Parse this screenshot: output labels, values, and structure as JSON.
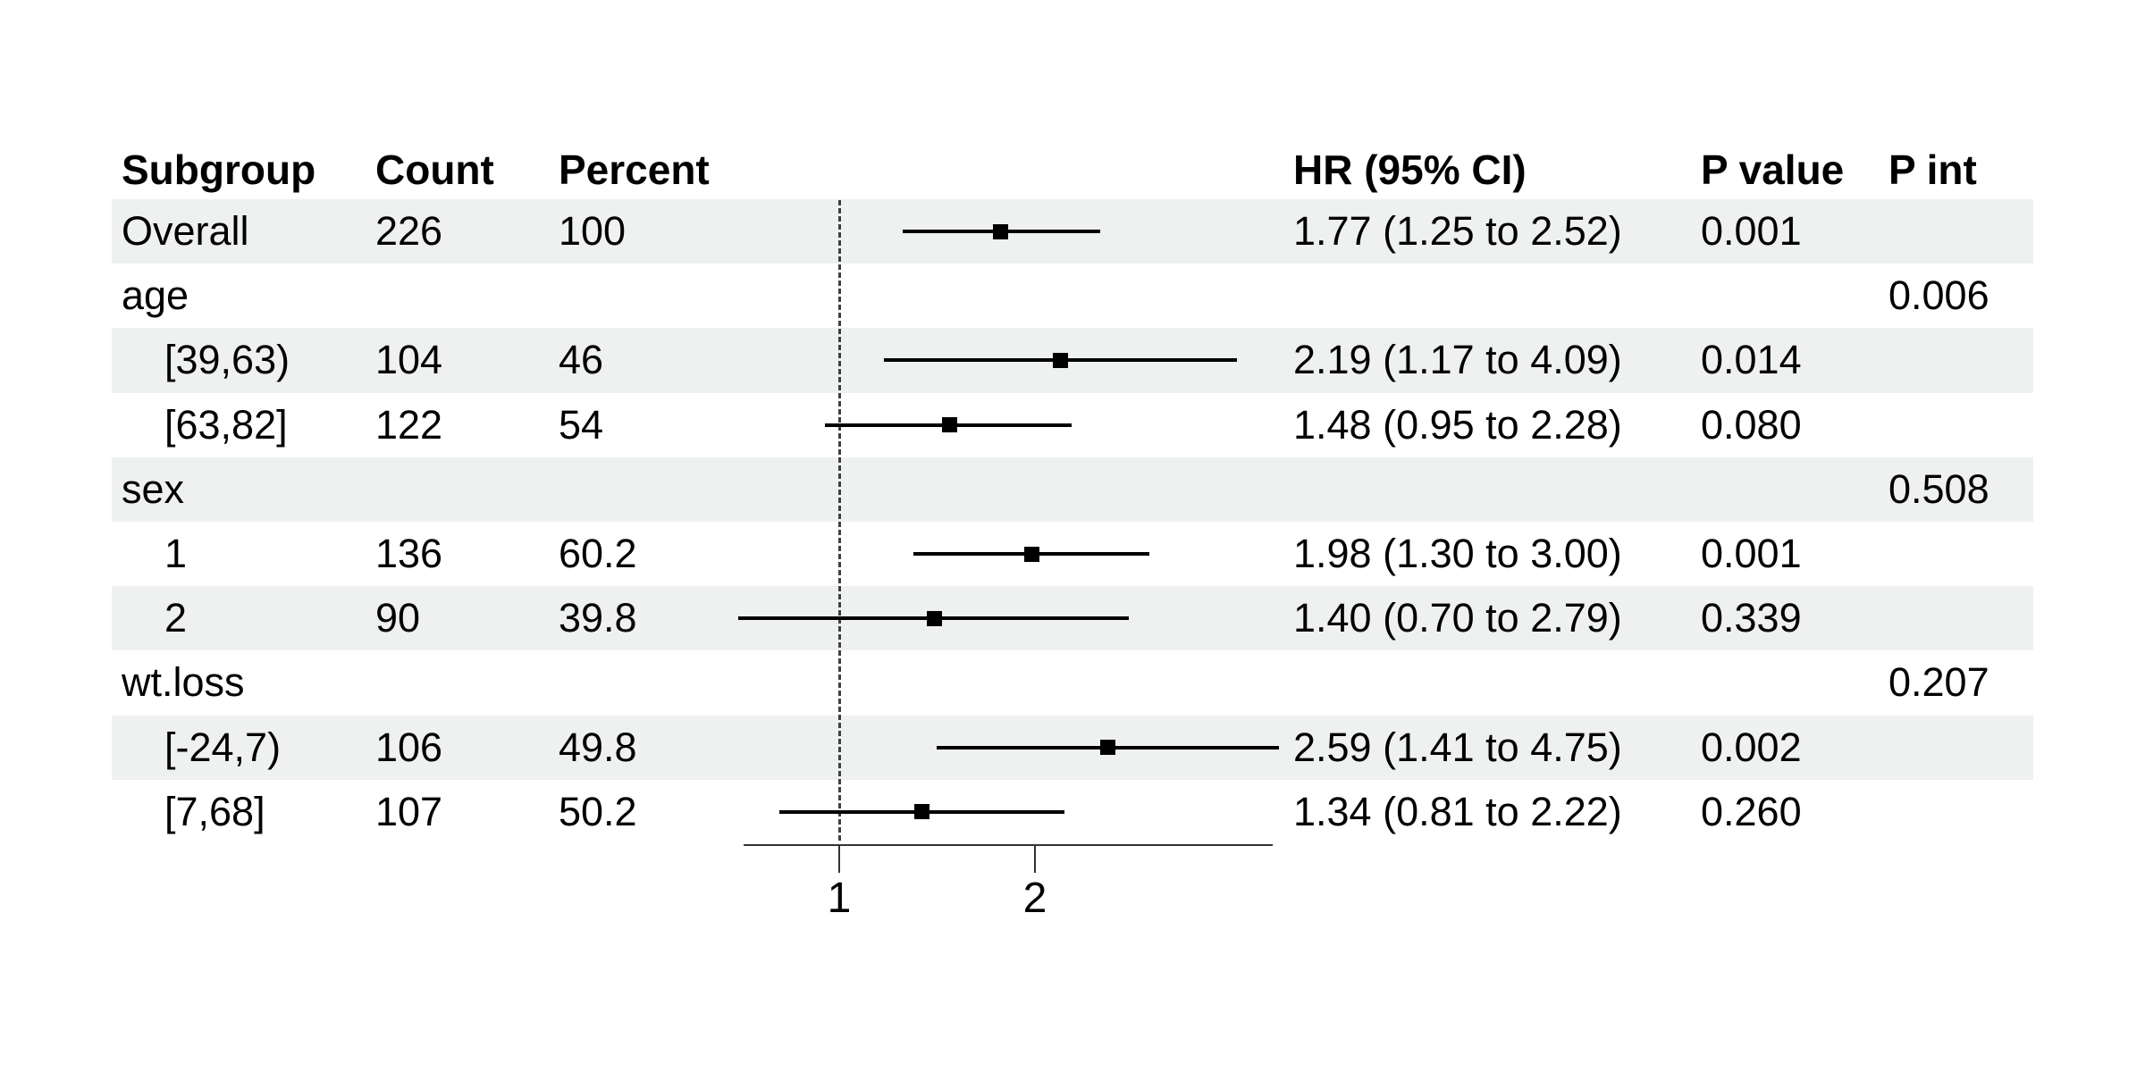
{
  "chart_data": {
    "type": "forest",
    "title": "",
    "columns": [
      "Subgroup",
      "Count",
      "Percent",
      "HR (95% CI)",
      "P value",
      "P int"
    ],
    "x_axis": {
      "scale": "log",
      "ticks": [
        1,
        2
      ],
      "range": [
        0.71,
        4.63
      ],
      "reference_line": 1
    },
    "rows": [
      {
        "subgroup": "Overall",
        "indent": false,
        "count": "226",
        "percent": "100",
        "hr": 1.77,
        "ci_low": 1.25,
        "ci_high": 2.52,
        "hr_ci_text": "1.77 (1.25 to 2.52)",
        "p_value": "0.001",
        "p_int": "",
        "shaded": true
      },
      {
        "subgroup": "age",
        "indent": false,
        "count": "",
        "percent": "",
        "hr": null,
        "ci_low": null,
        "ci_high": null,
        "hr_ci_text": "",
        "p_value": "",
        "p_int": "0.006",
        "shaded": false
      },
      {
        "subgroup": "[39,63)",
        "indent": true,
        "count": "104",
        "percent": "46",
        "hr": 2.19,
        "ci_low": 1.17,
        "ci_high": 4.09,
        "hr_ci_text": "2.19 (1.17 to 4.09)",
        "p_value": "0.014",
        "p_int": "",
        "shaded": true
      },
      {
        "subgroup": "[63,82]",
        "indent": true,
        "count": "122",
        "percent": "54",
        "hr": 1.48,
        "ci_low": 0.95,
        "ci_high": 2.28,
        "hr_ci_text": "1.48 (0.95 to 2.28)",
        "p_value": "0.080",
        "p_int": "",
        "shaded": false
      },
      {
        "subgroup": "sex",
        "indent": false,
        "count": "",
        "percent": "",
        "hr": null,
        "ci_low": null,
        "ci_high": null,
        "hr_ci_text": "",
        "p_value": "",
        "p_int": "0.508",
        "shaded": true
      },
      {
        "subgroup": "1",
        "indent": true,
        "count": "136",
        "percent": "60.2",
        "hr": 1.98,
        "ci_low": 1.3,
        "ci_high": 3.0,
        "hr_ci_text": "1.98 (1.30 to 3.00)",
        "p_value": "0.001",
        "p_int": "",
        "shaded": false
      },
      {
        "subgroup": "2",
        "indent": true,
        "count": "90",
        "percent": "39.8",
        "hr": 1.4,
        "ci_low": 0.7,
        "ci_high": 2.79,
        "hr_ci_text": "1.40 (0.70 to 2.79)",
        "p_value": "0.339",
        "p_int": "",
        "shaded": true
      },
      {
        "subgroup": "wt.loss",
        "indent": false,
        "count": "",
        "percent": "",
        "hr": null,
        "ci_low": null,
        "ci_high": null,
        "hr_ci_text": "",
        "p_value": "",
        "p_int": "0.207",
        "shaded": false
      },
      {
        "subgroup": "[-24,7)",
        "indent": true,
        "count": "106",
        "percent": "49.8",
        "hr": 2.59,
        "ci_low": 1.41,
        "ci_high": 4.75,
        "hr_ci_text": "2.59 (1.41 to 4.75)",
        "p_value": "0.002",
        "p_int": "",
        "shaded": true
      },
      {
        "subgroup": "[7,68]",
        "indent": true,
        "count": "107",
        "percent": "50.2",
        "hr": 1.34,
        "ci_low": 0.81,
        "ci_high": 2.22,
        "hr_ci_text": "1.34 (0.81 to 2.22)",
        "p_value": "0.260",
        "p_int": "",
        "shaded": false
      }
    ],
    "colors": {
      "band": "#eef1f0",
      "text": "#000000",
      "marker": "#000000",
      "ci_line": "#000000",
      "reference_line": "#3f3f3f",
      "axis": "#333333"
    }
  }
}
